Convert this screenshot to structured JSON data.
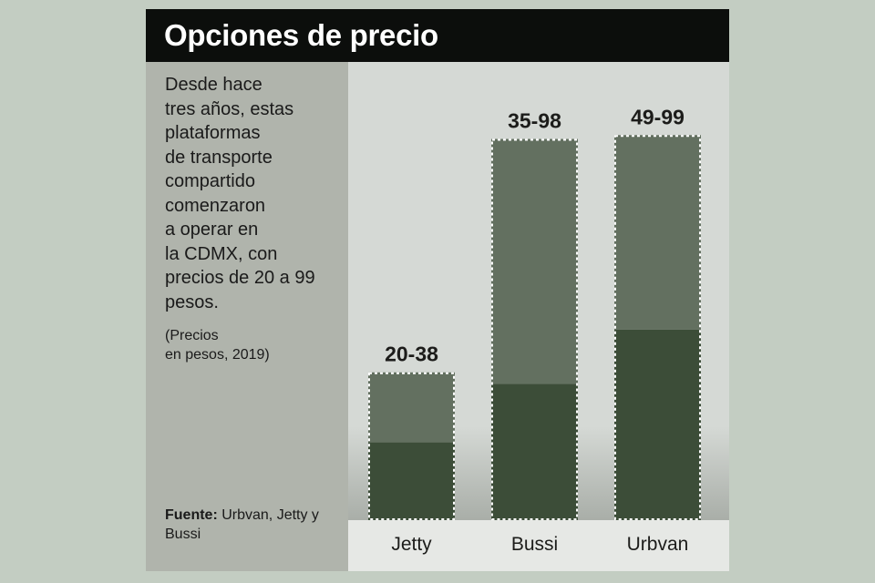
{
  "title": "Opciones de precio",
  "description": "Desde hace\ntres años, estas\nplataformas\nde transporte\ncompartido\ncomenzaron\na operar en\nla CDMX, con\nprecios de 20 a 99\npesos.",
  "note": "(Precios\nen pesos, 2019)",
  "source": {
    "label": "Fuente:",
    "text": " Urbvan, Jetty y Bussi"
  },
  "colors": {
    "title_bg": "#0c0e0c",
    "background": "#c3cdc2",
    "sidebar": "#b0b4ac",
    "plot_bg": "#d5d9d5",
    "bar_low": "#3c4d38",
    "bar_high": "#637060"
  },
  "chart_data": {
    "type": "bar",
    "categories": [
      "Jetty",
      "Bussi",
      "Urbvan"
    ],
    "series": [
      {
        "values": [
          20,
          35,
          49
        ]
      },
      {
        "values": [
          38,
          98,
          99
        ]
      }
    ],
    "data_labels": [
      "20-38",
      "35-98",
      "49-99"
    ],
    "title": "Opciones de precio",
    "xlabel": "",
    "ylabel": "",
    "ylim": [
      0,
      100
    ]
  }
}
